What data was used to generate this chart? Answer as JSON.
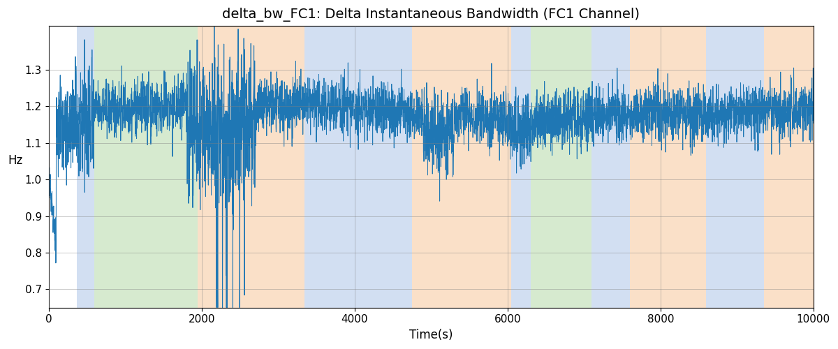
{
  "title": "delta_bw_FC1: Delta Instantaneous Bandwidth (FC1 Channel)",
  "xlabel": "Time(s)",
  "ylabel": "Hz",
  "xlim": [
    0,
    10000
  ],
  "ylim": [
    0.65,
    1.42
  ],
  "line_color": "#1f77b4",
  "line_width": 0.7,
  "background_regions": [
    {
      "xstart": 370,
      "xend": 600,
      "color": "#aec6e8",
      "alpha": 0.55
    },
    {
      "xstart": 600,
      "xend": 1950,
      "color": "#b5d9a8",
      "alpha": 0.55
    },
    {
      "xstart": 1950,
      "xend": 3350,
      "color": "#f7c89b",
      "alpha": 0.55
    },
    {
      "xstart": 3350,
      "xend": 4750,
      "color": "#aec6e8",
      "alpha": 0.55
    },
    {
      "xstart": 4750,
      "xend": 6050,
      "color": "#f7c89b",
      "alpha": 0.55
    },
    {
      "xstart": 6050,
      "xend": 6300,
      "color": "#aec6e8",
      "alpha": 0.55
    },
    {
      "xstart": 6300,
      "xend": 7100,
      "color": "#b5d9a8",
      "alpha": 0.55
    },
    {
      "xstart": 7100,
      "xend": 7600,
      "color": "#aec6e8",
      "alpha": 0.55
    },
    {
      "xstart": 7600,
      "xend": 8600,
      "color": "#f7c89b",
      "alpha": 0.55
    },
    {
      "xstart": 8600,
      "xend": 9350,
      "color": "#aec6e8",
      "alpha": 0.55
    },
    {
      "xstart": 9350,
      "xend": 10000,
      "color": "#f7c89b",
      "alpha": 0.55
    }
  ],
  "seed": 42,
  "n_points": 5000,
  "base_mean": 1.185,
  "base_std": 0.038,
  "title_fontsize": 14,
  "tick_fontsize": 11,
  "label_fontsize": 12
}
